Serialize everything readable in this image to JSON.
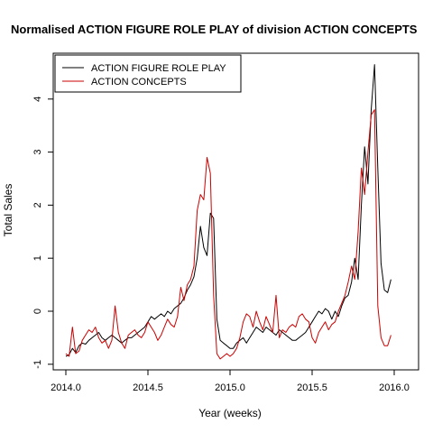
{
  "chart_data": {
    "type": "line",
    "title": "Normalised ACTION FIGURE ROLE PLAY of division ACTION CONCEPTS",
    "xlabel": "Year (weeks)",
    "ylabel": "Total Sales",
    "xlim": [
      2014.0,
      2016.0
    ],
    "ylim": [
      -1,
      4.6
    ],
    "x_ticks": [
      2014.0,
      2014.5,
      2015.0,
      2015.5,
      2016.0
    ],
    "x_tick_labels": [
      "2014.0",
      "2014.5",
      "2015.0",
      "2015.5",
      "2016.0"
    ],
    "y_ticks": [
      -1,
      0,
      1,
      2,
      3,
      4
    ],
    "y_tick_labels": [
      "-1",
      "0",
      "1",
      "2",
      "3",
      "4"
    ],
    "grid": false,
    "legend_position": "top-left",
    "series": [
      {
        "name": "ACTION FIGURE ROLE PLAY",
        "color": "#000000",
        "points": [
          [
            2014.0,
            -0.85
          ],
          [
            2014.02,
            -0.82
          ],
          [
            2014.04,
            -0.7
          ],
          [
            2014.06,
            -0.78
          ],
          [
            2014.08,
            -0.65
          ],
          [
            2014.1,
            -0.6
          ],
          [
            2014.12,
            -0.62
          ],
          [
            2014.14,
            -0.55
          ],
          [
            2014.16,
            -0.5
          ],
          [
            2014.18,
            -0.45
          ],
          [
            2014.2,
            -0.4
          ],
          [
            2014.22,
            -0.5
          ],
          [
            2014.24,
            -0.55
          ],
          [
            2014.26,
            -0.5
          ],
          [
            2014.28,
            -0.45
          ],
          [
            2014.3,
            -0.5
          ],
          [
            2014.32,
            -0.55
          ],
          [
            2014.34,
            -0.6
          ],
          [
            2014.36,
            -0.55
          ],
          [
            2014.38,
            -0.5
          ],
          [
            2014.4,
            -0.5
          ],
          [
            2014.42,
            -0.45
          ],
          [
            2014.44,
            -0.4
          ],
          [
            2014.46,
            -0.35
          ],
          [
            2014.48,
            -0.3
          ],
          [
            2014.5,
            -0.2
          ],
          [
            2014.52,
            -0.1
          ],
          [
            2014.54,
            -0.15
          ],
          [
            2014.56,
            -0.1
          ],
          [
            2014.58,
            -0.05
          ],
          [
            2014.6,
            -0.1
          ],
          [
            2014.62,
            0.0
          ],
          [
            2014.64,
            -0.05
          ],
          [
            2014.66,
            0.05
          ],
          [
            2014.68,
            0.1
          ],
          [
            2014.7,
            0.15
          ],
          [
            2014.72,
            0.25
          ],
          [
            2014.74,
            0.4
          ],
          [
            2014.76,
            0.5
          ],
          [
            2014.78,
            0.65
          ],
          [
            2014.8,
            1.0
          ],
          [
            2014.82,
            1.6
          ],
          [
            2014.84,
            1.2
          ],
          [
            2014.86,
            1.05
          ],
          [
            2014.88,
            1.85
          ],
          [
            2014.9,
            1.75
          ],
          [
            2014.92,
            -0.15
          ],
          [
            2014.94,
            -0.55
          ],
          [
            2014.96,
            -0.6
          ],
          [
            2014.98,
            -0.65
          ],
          [
            2015.0,
            -0.7
          ],
          [
            2015.02,
            -0.7
          ],
          [
            2015.04,
            -0.6
          ],
          [
            2015.06,
            -0.55
          ],
          [
            2015.08,
            -0.5
          ],
          [
            2015.1,
            -0.6
          ],
          [
            2015.12,
            -0.5
          ],
          [
            2015.14,
            -0.4
          ],
          [
            2015.16,
            -0.3
          ],
          [
            2015.18,
            -0.35
          ],
          [
            2015.2,
            -0.4
          ],
          [
            2015.22,
            -0.3
          ],
          [
            2015.24,
            -0.35
          ],
          [
            2015.26,
            -0.4
          ],
          [
            2015.28,
            -0.45
          ],
          [
            2015.3,
            -0.35
          ],
          [
            2015.32,
            -0.4
          ],
          [
            2015.34,
            -0.45
          ],
          [
            2015.36,
            -0.5
          ],
          [
            2015.38,
            -0.55
          ],
          [
            2015.4,
            -0.55
          ],
          [
            2015.42,
            -0.5
          ],
          [
            2015.44,
            -0.45
          ],
          [
            2015.46,
            -0.4
          ],
          [
            2015.48,
            -0.3
          ],
          [
            2015.5,
            -0.2
          ],
          [
            2015.52,
            -0.1
          ],
          [
            2015.54,
            0.0
          ],
          [
            2015.56,
            -0.05
          ],
          [
            2015.58,
            0.05
          ],
          [
            2015.6,
            0.0
          ],
          [
            2015.62,
            -0.15
          ],
          [
            2015.64,
            0.0
          ],
          [
            2015.66,
            -0.1
          ],
          [
            2015.68,
            0.1
          ],
          [
            2015.7,
            0.25
          ],
          [
            2015.72,
            0.3
          ],
          [
            2015.74,
            0.55
          ],
          [
            2015.76,
            1.0
          ],
          [
            2015.78,
            0.6
          ],
          [
            2015.8,
            2.0
          ],
          [
            2015.82,
            3.1
          ],
          [
            2015.84,
            2.4
          ],
          [
            2015.86,
            3.8
          ],
          [
            2015.88,
            4.65
          ],
          [
            2015.9,
            2.7
          ],
          [
            2015.92,
            0.9
          ],
          [
            2015.94,
            0.4
          ],
          [
            2015.96,
            0.35
          ],
          [
            2015.98,
            0.6
          ]
        ]
      },
      {
        "name": "ACTION CONCEPTS",
        "color": "#cc0000",
        "points": [
          [
            2014.0,
            -0.8
          ],
          [
            2014.02,
            -0.85
          ],
          [
            2014.04,
            -0.3
          ],
          [
            2014.06,
            -0.8
          ],
          [
            2014.08,
            -0.75
          ],
          [
            2014.1,
            -0.55
          ],
          [
            2014.12,
            -0.45
          ],
          [
            2014.14,
            -0.35
          ],
          [
            2014.16,
            -0.4
          ],
          [
            2014.18,
            -0.3
          ],
          [
            2014.2,
            -0.5
          ],
          [
            2014.22,
            -0.6
          ],
          [
            2014.24,
            -0.55
          ],
          [
            2014.26,
            -0.7
          ],
          [
            2014.28,
            -0.55
          ],
          [
            2014.3,
            0.1
          ],
          [
            2014.32,
            -0.4
          ],
          [
            2014.34,
            -0.6
          ],
          [
            2014.36,
            -0.7
          ],
          [
            2014.38,
            -0.45
          ],
          [
            2014.4,
            -0.4
          ],
          [
            2014.42,
            -0.35
          ],
          [
            2014.44,
            -0.45
          ],
          [
            2014.46,
            -0.5
          ],
          [
            2014.48,
            -0.4
          ],
          [
            2014.5,
            -0.2
          ],
          [
            2014.52,
            -0.3
          ],
          [
            2014.54,
            -0.4
          ],
          [
            2014.56,
            -0.55
          ],
          [
            2014.58,
            -0.45
          ],
          [
            2014.6,
            -0.3
          ],
          [
            2014.62,
            -0.15
          ],
          [
            2014.64,
            -0.25
          ],
          [
            2014.66,
            -0.3
          ],
          [
            2014.68,
            -0.1
          ],
          [
            2014.7,
            0.45
          ],
          [
            2014.72,
            0.2
          ],
          [
            2014.74,
            0.5
          ],
          [
            2014.76,
            0.6
          ],
          [
            2014.78,
            0.85
          ],
          [
            2014.8,
            1.9
          ],
          [
            2014.82,
            2.2
          ],
          [
            2014.84,
            2.1
          ],
          [
            2014.86,
            2.9
          ],
          [
            2014.88,
            2.6
          ],
          [
            2014.9,
            0.3
          ],
          [
            2014.92,
            -0.8
          ],
          [
            2014.94,
            -0.9
          ],
          [
            2014.96,
            -0.85
          ],
          [
            2014.98,
            -0.8
          ],
          [
            2015.0,
            -0.85
          ],
          [
            2015.02,
            -0.8
          ],
          [
            2015.04,
            -0.7
          ],
          [
            2015.06,
            -0.5
          ],
          [
            2015.08,
            -0.2
          ],
          [
            2015.1,
            -0.05
          ],
          [
            2015.12,
            -0.1
          ],
          [
            2015.14,
            -0.3
          ],
          [
            2015.16,
            0.0
          ],
          [
            2015.18,
            -0.2
          ],
          [
            2015.2,
            -0.35
          ],
          [
            2015.22,
            -0.1
          ],
          [
            2015.24,
            -0.25
          ],
          [
            2015.26,
            -0.4
          ],
          [
            2015.28,
            0.3
          ],
          [
            2015.3,
            -0.5
          ],
          [
            2015.32,
            -0.35
          ],
          [
            2015.34,
            -0.4
          ],
          [
            2015.36,
            -0.3
          ],
          [
            2015.38,
            -0.25
          ],
          [
            2015.4,
            -0.3
          ],
          [
            2015.42,
            -0.1
          ],
          [
            2015.44,
            -0.05
          ],
          [
            2015.46,
            -0.15
          ],
          [
            2015.48,
            -0.2
          ],
          [
            2015.5,
            -0.5
          ],
          [
            2015.52,
            -0.6
          ],
          [
            2015.54,
            -0.4
          ],
          [
            2015.56,
            -0.3
          ],
          [
            2015.58,
            -0.2
          ],
          [
            2015.6,
            -0.35
          ],
          [
            2015.62,
            -0.25
          ],
          [
            2015.64,
            -0.2
          ],
          [
            2015.66,
            0.0
          ],
          [
            2015.68,
            0.15
          ],
          [
            2015.7,
            0.3
          ],
          [
            2015.72,
            0.55
          ],
          [
            2015.74,
            0.85
          ],
          [
            2015.76,
            0.6
          ],
          [
            2015.78,
            1.5
          ],
          [
            2015.8,
            2.7
          ],
          [
            2015.82,
            2.2
          ],
          [
            2015.84,
            3.0
          ],
          [
            2015.86,
            3.7
          ],
          [
            2015.88,
            3.8
          ],
          [
            2015.9,
            0.1
          ],
          [
            2015.92,
            -0.5
          ],
          [
            2015.94,
            -0.65
          ],
          [
            2015.96,
            -0.65
          ],
          [
            2015.98,
            -0.45
          ]
        ]
      }
    ]
  }
}
